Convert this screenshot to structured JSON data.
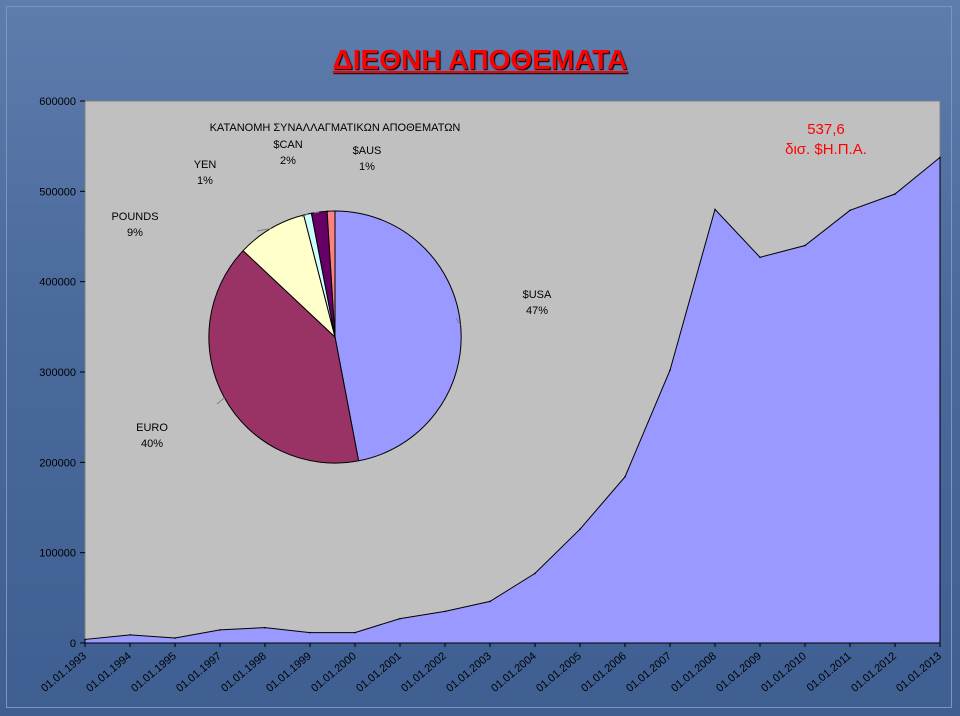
{
  "slide": {
    "title": "ΔΙΕΘΝΗ ΑΠΟΘΕΜΑΤΑ"
  },
  "chart_data": [
    {
      "type": "area",
      "categories": [
        "01.01.1993",
        "01.01.1994",
        "01.01.1995",
        "01.01.1997",
        "01.01.1998",
        "01.01.1999",
        "01.01.2000",
        "01.01.2001",
        "01.01.2002",
        "01.01.2003",
        "01.01.2004",
        "01.01.2005",
        "01.01.2006",
        "01.01.2007",
        "01.01.2008",
        "01.01.2009",
        "01.01.2010",
        "01.01.2011",
        "01.01.2012",
        "01.01.2013"
      ],
      "values": [
        4000,
        9000,
        5500,
        14500,
        17000,
        11500,
        11500,
        27000,
        35000,
        46000,
        77000,
        126000,
        184000,
        302000,
        480000,
        427000,
        440000,
        479000,
        497000,
        537600
      ],
      "y_ticks": [
        "0",
        "100000",
        "200000",
        "300000",
        "400000",
        "500000",
        "600000"
      ],
      "ylim": [
        0,
        600000
      ],
      "fill_color": "#9999ff",
      "annotation": {
        "line1": "537,6",
        "line2": "δισ. $Η.Π.Α.",
        "color": "#ff0000"
      },
      "grid": false
    },
    {
      "type": "pie",
      "title": "ΚΑΤΑΝΟΜΗ ΣΥΝΑΛΛΑΓΜΑΤΙΚΩΝ ΑΠΟΘΕΜΑΤΩΝ",
      "slices": [
        {
          "name": "$USA",
          "value": 47,
          "pct": "47%",
          "color": "#9999ff"
        },
        {
          "name": "EURO",
          "value": 40,
          "pct": "40%",
          "color": "#993366"
        },
        {
          "name": "POUNDS",
          "value": 9,
          "pct": "9%",
          "color": "#ffffcc"
        },
        {
          "name": "YEN",
          "value": 1,
          "pct": "1%",
          "color": "#ccffff"
        },
        {
          "name": "$CAN",
          "value": 2,
          "pct": "2%",
          "color": "#660066"
        },
        {
          "name": "$AUS",
          "value": 1,
          "pct": "1%",
          "color": "#ff8080"
        }
      ]
    }
  ]
}
